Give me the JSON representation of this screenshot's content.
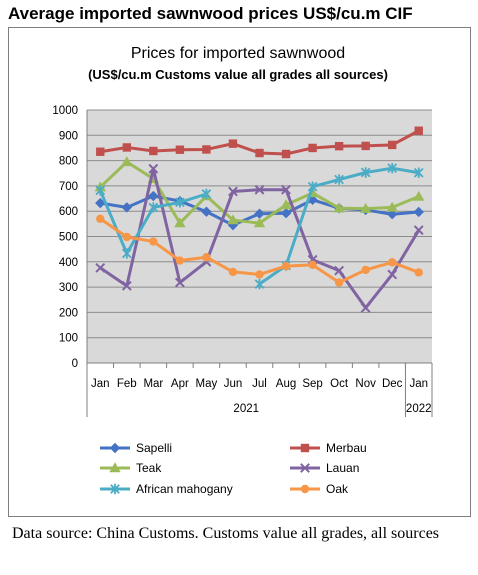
{
  "heading": "Average imported sawnwood prices US$/cu.m CIF",
  "source_note": "Data source: China Customs. Customs value all grades, all sources",
  "chart_data": {
    "type": "line",
    "title": "Prices for imported sawnwood",
    "subtitle": "(US$/cu.m Customs value all grades all sources)",
    "categories": [
      "Jan",
      "Feb",
      "Mar",
      "Apr",
      "May",
      "Jun",
      "Jul",
      "Aug",
      "Sep",
      "Oct",
      "Nov",
      "Dec",
      "Jan"
    ],
    "year_groups": [
      {
        "label": "2021",
        "start": 0,
        "end": 11
      },
      {
        "label": "2022",
        "start": 12,
        "end": 12
      }
    ],
    "ylim": [
      0,
      1000
    ],
    "yticks": [
      "0",
      "100",
      "200",
      "300",
      "400",
      "500",
      "600",
      "700",
      "800",
      "900",
      "1000"
    ],
    "grid": true,
    "legend_position": "bottom",
    "series": [
      {
        "name": "Sapelli",
        "color": "#4472c4",
        "marker": "diamond",
        "values": [
          632,
          615,
          660,
          640,
          598,
          545,
          590,
          592,
          645,
          612,
          605,
          588,
          597
        ]
      },
      {
        "name": "Merbau",
        "color": "#c0504d",
        "marker": "square",
        "values": [
          835,
          852,
          838,
          843,
          844,
          867,
          830,
          826,
          850,
          857,
          858,
          862,
          918
        ]
      },
      {
        "name": "Teak",
        "color": "#9bbb59",
        "marker": "triangle",
        "values": [
          695,
          795,
          728,
          553,
          660,
          565,
          553,
          625,
          672,
          612,
          610,
          615,
          658
        ]
      },
      {
        "name": "Lauan",
        "color": "#8064a2",
        "marker": "x",
        "values": [
          376,
          305,
          768,
          318,
          400,
          678,
          685,
          685,
          408,
          365,
          218,
          350,
          525
        ]
      },
      {
        "name": "African mahogany",
        "color": "#4bacc6",
        "marker": "star",
        "values": [
          682,
          433,
          615,
          635,
          668,
          null,
          312,
          385,
          697,
          725,
          753,
          770,
          752
        ]
      },
      {
        "name": "Oak",
        "color": "#f79646",
        "marker": "circle",
        "values": [
          570,
          498,
          480,
          405,
          418,
          360,
          350,
          383,
          388,
          318,
          368,
          398,
          358
        ]
      }
    ]
  }
}
